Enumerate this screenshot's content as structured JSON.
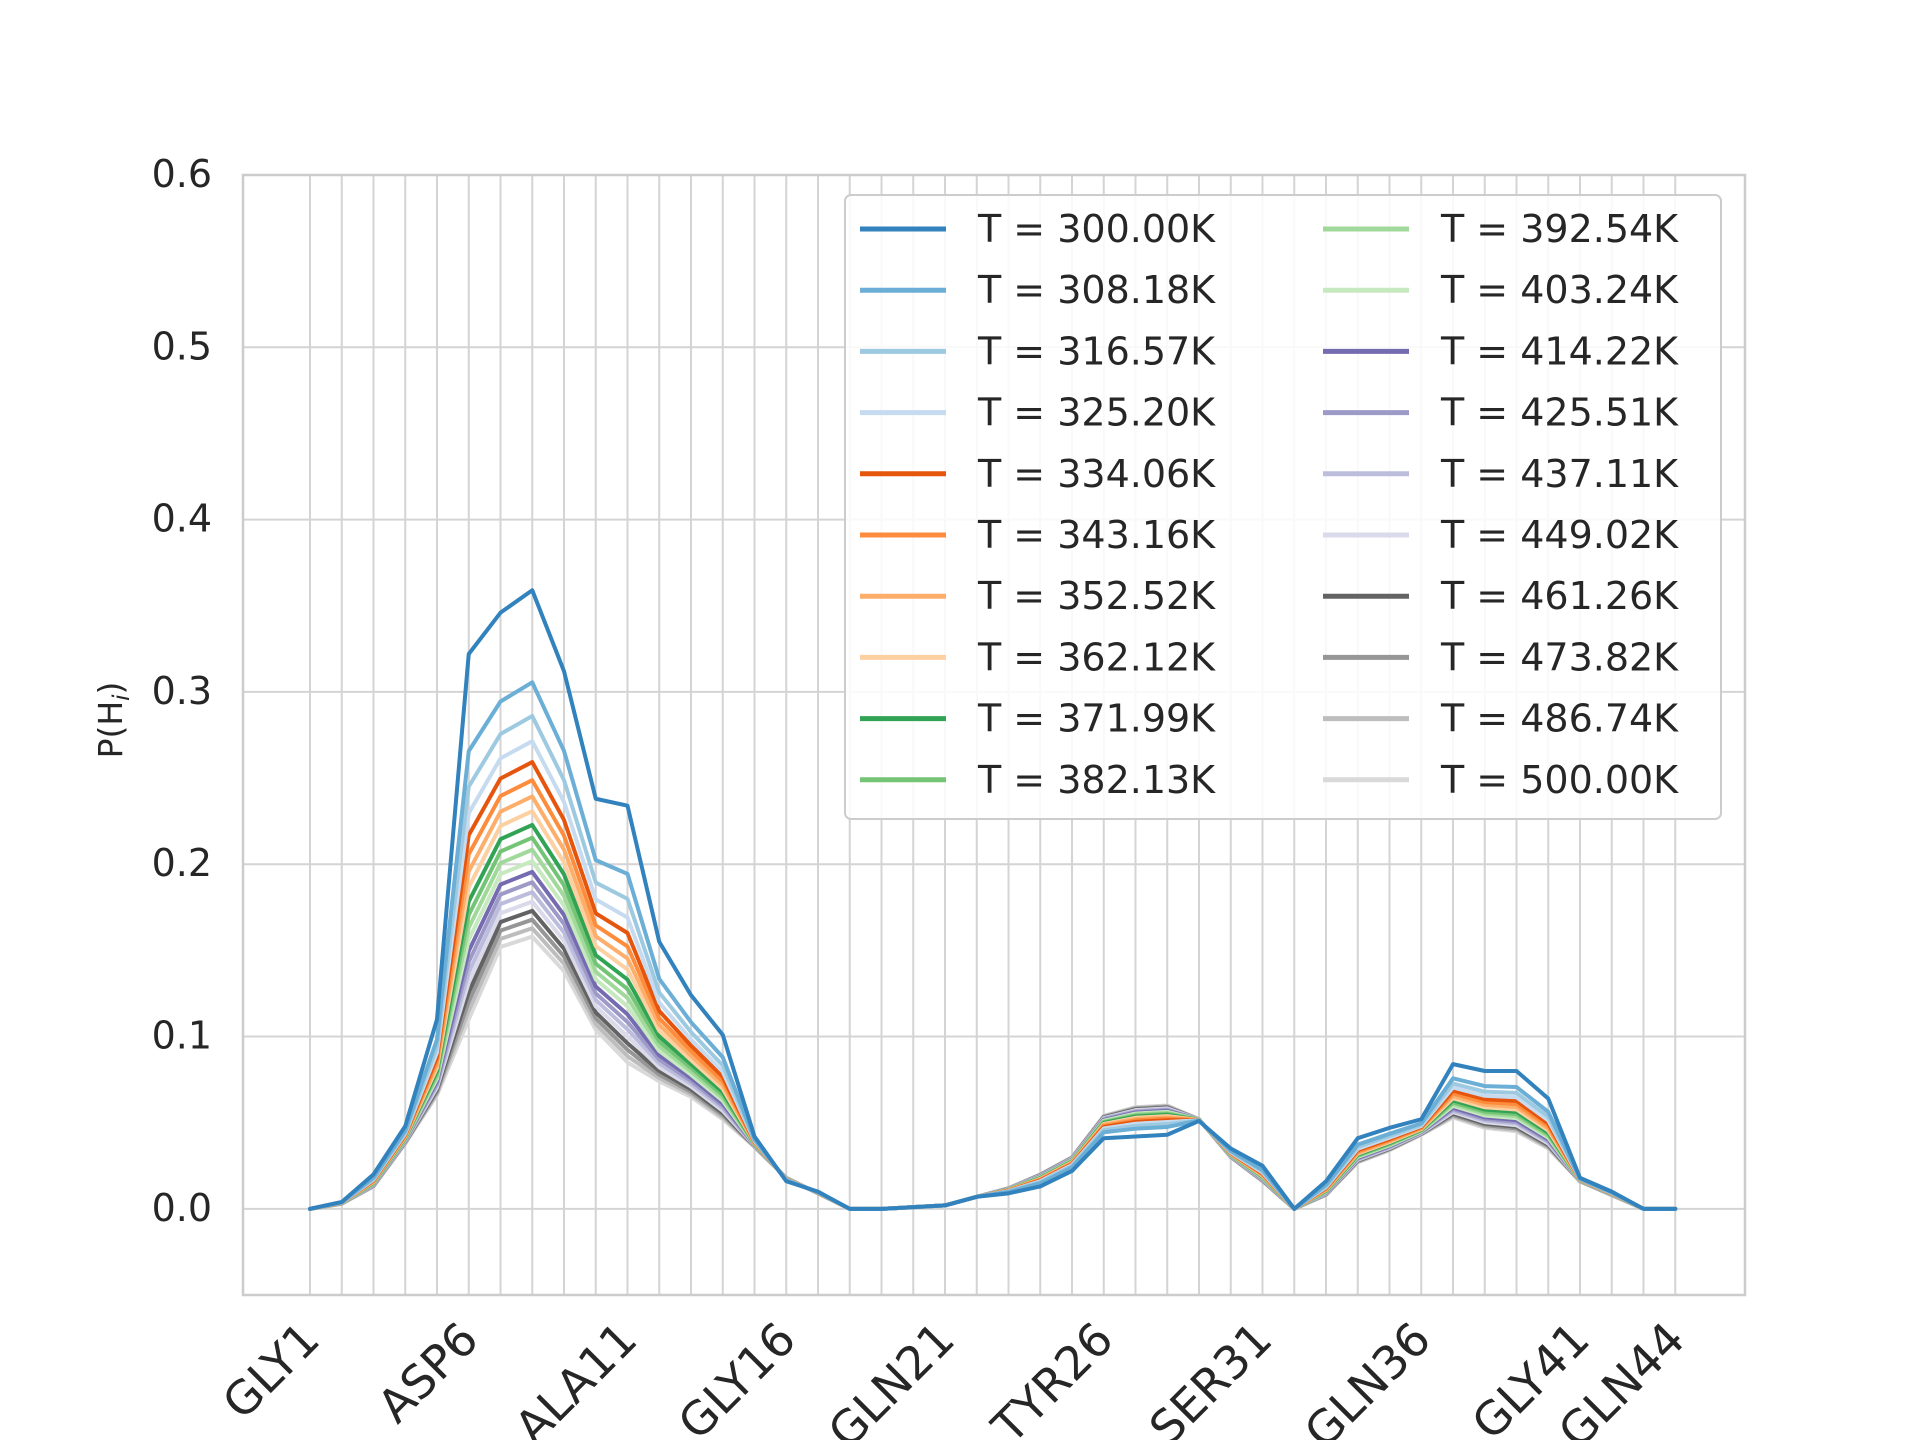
{
  "chart_data": {
    "type": "line",
    "title": "",
    "xlabel": "",
    "ylabel": "P(H",
    "ylabel_sub": "i",
    "ylabel_close": ")",
    "ylim": [
      -0.05,
      0.6
    ],
    "yticks": [
      0.0,
      0.1,
      0.2,
      0.3,
      0.4,
      0.5,
      0.6
    ],
    "ytick_labels": [
      "0.0",
      "0.1",
      "0.2",
      "0.3",
      "0.4",
      "0.5",
      "0.6"
    ],
    "residue_count": 44,
    "xtick_labels": [
      {
        "residue": 1,
        "label": "GLY1"
      },
      {
        "residue": 6,
        "label": "ASP6"
      },
      {
        "residue": 11,
        "label": "ALA11"
      },
      {
        "residue": 16,
        "label": "GLY16"
      },
      {
        "residue": 21,
        "label": "GLN21"
      },
      {
        "residue": 26,
        "label": "TYR26"
      },
      {
        "residue": 31,
        "label": "SER31"
      },
      {
        "residue": 36,
        "label": "GLN36"
      },
      {
        "residue": 41,
        "label": "GLY41"
      },
      {
        "residue": 44,
        "label": "GLN44"
      }
    ],
    "grid": true,
    "legend_position": "upper-right",
    "legend_columns": 2,
    "series": [
      {
        "name": "T = 300.00K",
        "color": "#3182bd"
      },
      {
        "name": "T = 308.18K",
        "color": "#6baed6"
      },
      {
        "name": "T = 316.57K",
        "color": "#9ecae1"
      },
      {
        "name": "T = 325.20K",
        "color": "#c6dbef"
      },
      {
        "name": "T = 334.06K",
        "color": "#e6550d"
      },
      {
        "name": "T = 343.16K",
        "color": "#fd8d3c"
      },
      {
        "name": "T = 352.52K",
        "color": "#fdae6b"
      },
      {
        "name": "T = 362.12K",
        "color": "#fdd0a2"
      },
      {
        "name": "T = 371.99K",
        "color": "#31a354"
      },
      {
        "name": "T = 382.13K",
        "color": "#74c476"
      },
      {
        "name": "T = 392.54K",
        "color": "#a1d99b"
      },
      {
        "name": "T = 403.24K",
        "color": "#c7e9c0"
      },
      {
        "name": "T = 414.22K",
        "color": "#756bb1"
      },
      {
        "name": "T = 425.51K",
        "color": "#9e9ac8"
      },
      {
        "name": "T = 437.11K",
        "color": "#bcbddc"
      },
      {
        "name": "T = 449.02K",
        "color": "#dadaeb"
      },
      {
        "name": "T = 461.26K",
        "color": "#636363"
      },
      {
        "name": "T = 473.82K",
        "color": "#969696"
      },
      {
        "name": "T = 486.74K",
        "color": "#bdbdbd"
      },
      {
        "name": "T = 500.00K",
        "color": "#d9d9d9"
      }
    ],
    "series_values": {
      "hot": [
        0.0,
        0.003,
        0.013,
        0.038,
        0.066,
        0.11,
        0.152,
        0.158,
        0.138,
        0.104,
        0.085,
        0.074,
        0.065,
        0.052,
        0.036,
        0.018,
        0.009,
        0.0,
        0.0,
        0.001,
        0.002,
        0.007,
        0.012,
        0.02,
        0.03,
        0.054,
        0.059,
        0.06,
        0.052,
        0.03,
        0.016,
        0.0,
        0.008,
        0.027,
        0.034,
        0.043,
        0.053,
        0.047,
        0.045,
        0.035,
        0.016,
        0.008,
        0.0,
        0.0
      ],
      "cold": [
        0.0,
        0.004,
        0.02,
        0.048,
        0.11,
        0.322,
        0.346,
        0.359,
        0.312,
        0.238,
        0.234,
        0.155,
        0.124,
        0.101,
        0.042,
        0.016,
        0.01,
        0.0,
        0.0,
        0.001,
        0.002,
        0.007,
        0.009,
        0.013,
        0.022,
        0.041,
        0.042,
        0.043,
        0.051,
        0.035,
        0.025,
        0.0,
        0.016,
        0.041,
        0.047,
        0.052,
        0.084,
        0.08,
        0.08,
        0.064,
        0.018,
        0.01,
        0.0,
        0.0
      ]
    }
  }
}
